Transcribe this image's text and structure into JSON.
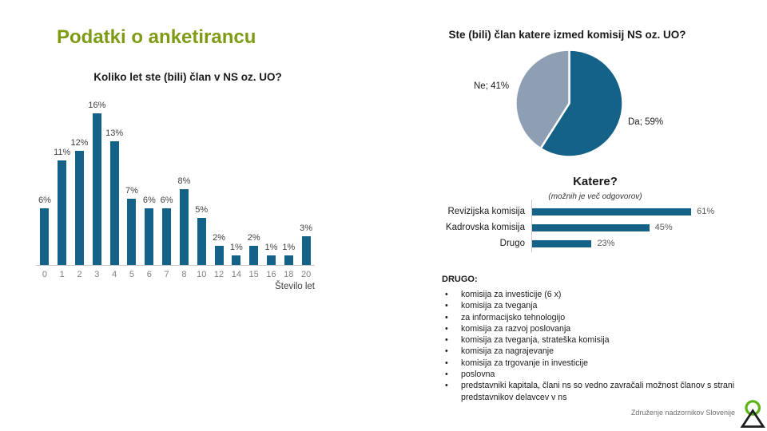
{
  "slide": {
    "title": "Podatki o anketirancu",
    "footer": {
      "org": "Združenje nadzornikov Slovenije",
      "logo": "zns-logo"
    }
  },
  "colors": {
    "title_green": "#7D9C14",
    "logo_green": "#5CB312",
    "bar_teal": "#146288",
    "pie_ne_gray_blue": "#8E9FB4",
    "axis_line": "#C9C9C9",
    "tick_gray": "#7F7F7F"
  },
  "chart_data": [
    {
      "type": "bar",
      "title": "Koliko let ste (bili) član v NS oz. UO?",
      "categories": [
        "0",
        "1",
        "2",
        "3",
        "4",
        "5",
        "6",
        "7",
        "8",
        "10",
        "12",
        "14",
        "15",
        "16",
        "18",
        "20"
      ],
      "values": [
        6,
        11,
        12,
        16,
        13,
        7,
        6,
        6,
        8,
        5,
        2,
        1,
        2,
        1,
        1,
        3
      ],
      "value_suffix": "%",
      "xlabel": "Število let",
      "ylim": [
        0,
        16
      ],
      "grid": false,
      "legend": false,
      "bar_color": "#146288"
    },
    {
      "type": "pie",
      "title": "Ste (bili) član katere izmed komisij NS oz. UO?",
      "start_at_top_clockwise": true,
      "slices": [
        {
          "label": "Da",
          "value": 59,
          "display": "Da; 59%",
          "color": "#146288"
        },
        {
          "label": "Ne",
          "value": 41,
          "display": "Ne; 41%",
          "color": "#8E9FB4"
        }
      ]
    },
    {
      "type": "bar-horizontal",
      "title": "Katere?",
      "subtitle": "(možnih je več odgovorov)",
      "categories": [
        "Revizijska komisija",
        "Kadrovska komisija",
        "Drugo"
      ],
      "values": [
        61,
        45,
        23
      ],
      "value_suffix": "%",
      "bar_color": "#146288",
      "xlim": [
        0,
        61
      ]
    }
  ],
  "drugo": {
    "heading": "DRUGO:",
    "bullet": "•",
    "items": [
      "komisija za investicije (6 x)",
      "komisija za tveganja",
      "za informacijsko tehnologijo",
      "komisija za razvoj poslovanja",
      "komisija za tveganja, strateška komisija",
      "komisija za nagrajevanje",
      "komisija za trgovanje in investicije",
      "poslovna",
      "predstavniki kapitala, člani ns so vedno zavračali možnost članov s strani predstavnikov delavcev v ns"
    ]
  }
}
